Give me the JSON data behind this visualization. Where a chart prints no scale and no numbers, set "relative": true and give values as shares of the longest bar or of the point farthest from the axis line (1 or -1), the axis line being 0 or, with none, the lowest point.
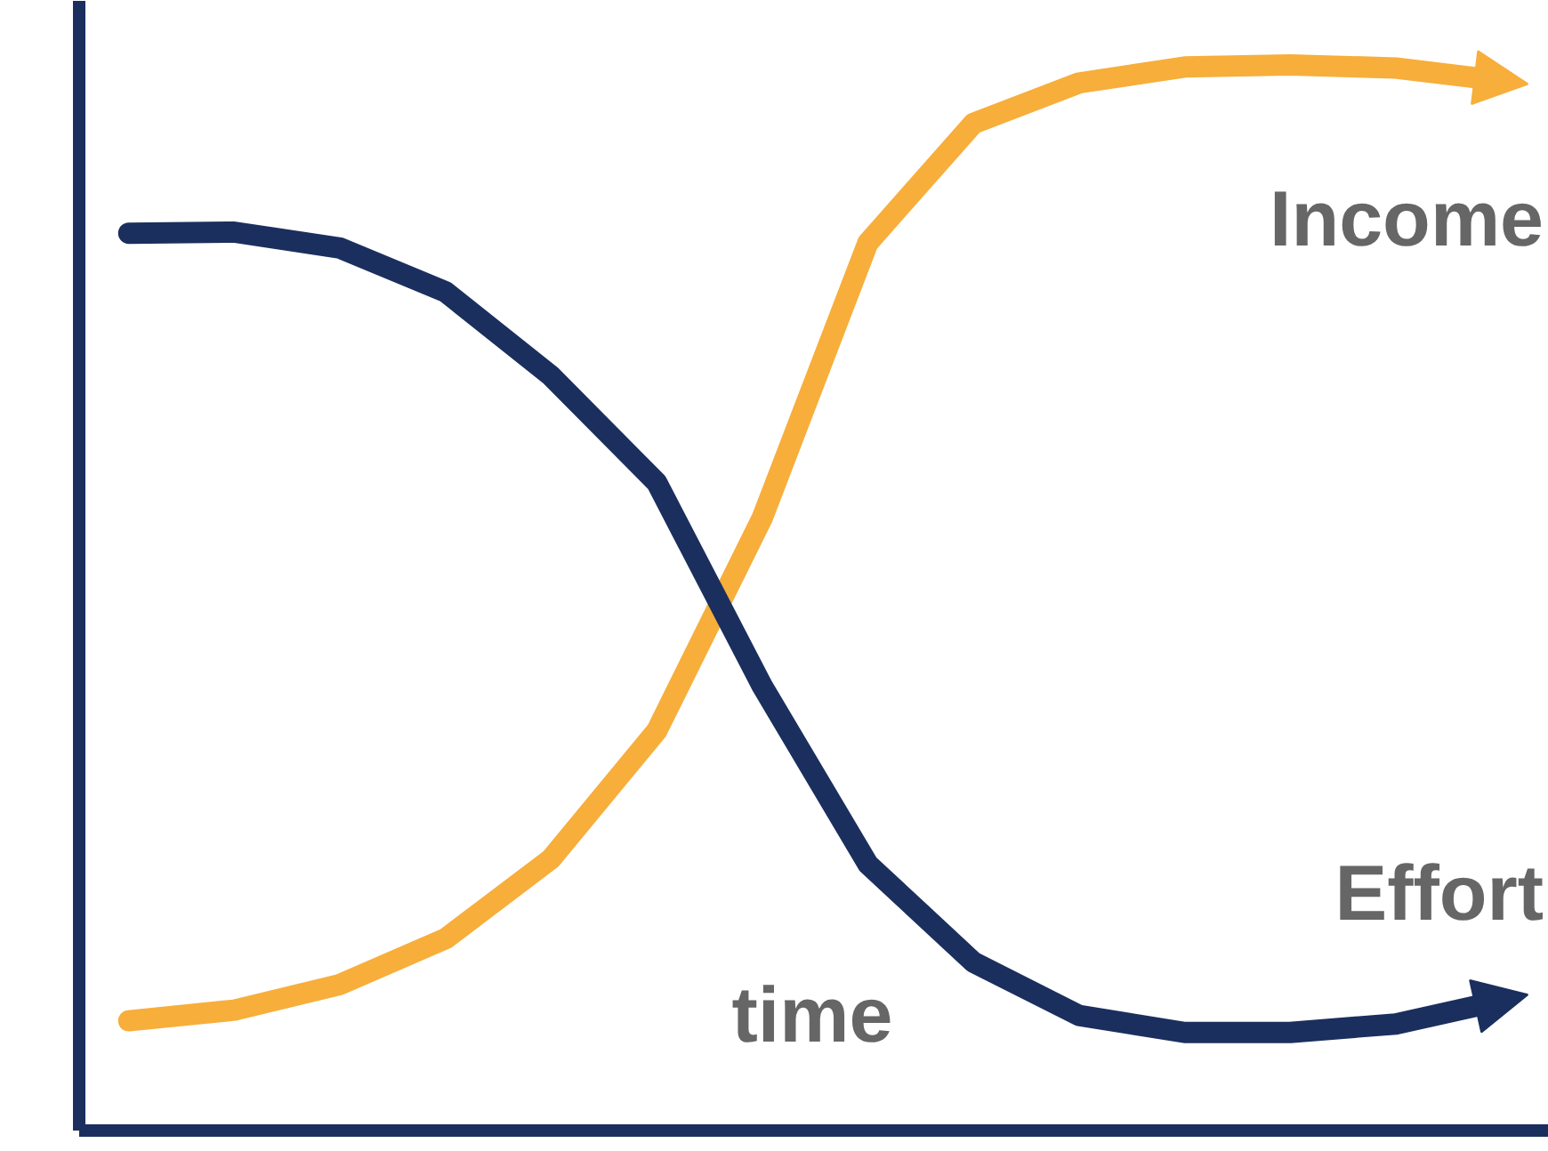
{
  "chart_data": {
    "type": "line",
    "relative": true,
    "xlabel": "time",
    "line_style": "solid",
    "categories": [
      null,
      null,
      null,
      null,
      null,
      null,
      null,
      null,
      null,
      null,
      null,
      null,
      null,
      null
    ],
    "series": [
      {
        "name": "Income",
        "color": "#f7ae3b",
        "values": [
          0.103,
          0.113,
          0.137,
          0.18,
          0.255,
          0.375,
          0.575,
          0.833,
          0.945,
          0.983,
          0.998,
          1.0,
          0.997,
          0.985
        ]
      },
      {
        "name": "Effort",
        "color": "#1b2f5e",
        "values": [
          0.842,
          0.843,
          0.828,
          0.787,
          0.708,
          0.608,
          0.417,
          0.25,
          0.158,
          0.108,
          0.092,
          0.092,
          0.1,
          0.122
        ]
      }
    ]
  }
}
